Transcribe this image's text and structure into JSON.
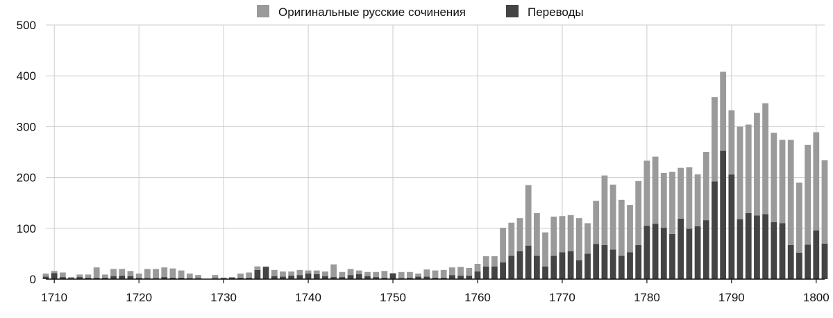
{
  "chart_data": {
    "type": "bar",
    "stacked": true,
    "title": "",
    "xlabel": "",
    "ylabel": "",
    "xlim": [
      1709,
      1801
    ],
    "ylim": [
      0,
      500
    ],
    "x_ticks": [
      1710,
      1720,
      1730,
      1740,
      1750,
      1760,
      1770,
      1780,
      1790,
      1800
    ],
    "y_ticks": [
      0,
      100,
      200,
      300,
      400,
      500
    ],
    "grid": true,
    "legend_position": "top-center",
    "x": [
      1709,
      1710,
      1711,
      1712,
      1713,
      1714,
      1715,
      1716,
      1717,
      1718,
      1719,
      1720,
      1721,
      1722,
      1723,
      1724,
      1725,
      1726,
      1727,
      1728,
      1729,
      1730,
      1731,
      1732,
      1733,
      1734,
      1735,
      1736,
      1737,
      1738,
      1739,
      1740,
      1741,
      1742,
      1743,
      1744,
      1745,
      1746,
      1747,
      1748,
      1749,
      1750,
      1751,
      1752,
      1753,
      1754,
      1755,
      1756,
      1757,
      1758,
      1759,
      1760,
      1761,
      1762,
      1763,
      1764,
      1765,
      1766,
      1767,
      1768,
      1769,
      1770,
      1771,
      1772,
      1773,
      1774,
      1775,
      1776,
      1777,
      1778,
      1779,
      1780,
      1781,
      1782,
      1783,
      1784,
      1785,
      1786,
      1787,
      1788,
      1789,
      1790,
      1791,
      1792,
      1793,
      1794,
      1795,
      1796,
      1797,
      1798,
      1799,
      1800,
      1801
    ],
    "series": [
      {
        "name": "Переводы",
        "color": "#444444",
        "values": [
          5,
          12,
          4,
          2,
          4,
          3,
          3,
          3,
          6,
          7,
          6,
          3,
          2,
          2,
          4,
          3,
          3,
          2,
          2,
          0,
          2,
          2,
          3,
          3,
          3,
          18,
          24,
          6,
          5,
          7,
          8,
          11,
          10,
          6,
          4,
          4,
          8,
          10,
          6,
          4,
          3,
          11,
          2,
          3,
          5,
          5,
          3,
          3,
          8,
          7,
          7,
          15,
          25,
          25,
          33,
          46,
          55,
          66,
          46,
          25,
          46,
          53,
          55,
          37,
          50,
          69,
          67,
          58,
          46,
          53,
          67,
          105,
          109,
          101,
          89,
          119,
          99,
          104,
          116,
          192,
          253,
          206,
          118,
          130,
          125,
          128,
          112,
          110,
          67,
          52,
          68,
          96,
          70
        ]
      },
      {
        "name": "Оригинальные русские сочинения",
        "color": "#9a9a9a",
        "values": [
          6,
          4,
          9,
          2,
          5,
          6,
          20,
          6,
          14,
          13,
          10,
          8,
          18,
          18,
          19,
          18,
          14,
          9,
          6,
          0,
          6,
          1,
          1,
          8,
          10,
          7,
          1,
          12,
          10,
          8,
          10,
          6,
          7,
          9,
          25,
          10,
          12,
          7,
          8,
          10,
          13,
          1,
          12,
          11,
          6,
          14,
          14,
          15,
          15,
          17,
          15,
          15,
          20,
          20,
          68,
          65,
          65,
          119,
          84,
          67,
          77,
          71,
          71,
          83,
          60,
          85,
          137,
          128,
          110,
          93,
          126,
          128,
          132,
          108,
          122,
          100,
          121,
          102,
          134,
          166,
          155,
          126,
          182,
          174,
          202,
          218,
          176,
          164,
          207,
          138,
          196,
          193,
          164
        ]
      }
    ]
  }
}
